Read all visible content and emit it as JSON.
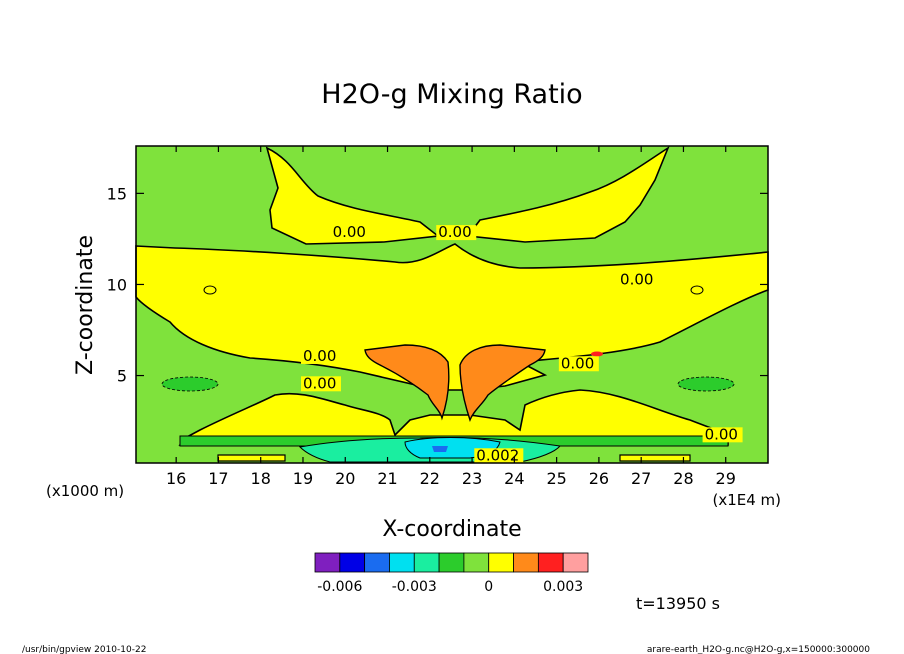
{
  "chart_data": {
    "type": "heatmap",
    "title": "H2O-g Mixing Ratio",
    "xlabel": "X-coordinate",
    "ylabel": "Z-coordinate",
    "x_unit": "(x1E4 m)",
    "y_unit": "(x1000 m)",
    "x_ticks": [
      16,
      17,
      18,
      19,
      20,
      21,
      22,
      23,
      24,
      25,
      26,
      27,
      28,
      29
    ],
    "y_ticks": [
      5,
      10,
      15
    ],
    "xlim": [
      15.05,
      30.0
    ],
    "ylim": [
      0.2,
      17.6
    ],
    "contour_labels": [
      {
        "text": "0.00",
        "x": 19.7,
        "z": 12.6
      },
      {
        "text": "0.00",
        "x": 22.2,
        "z": 12.6
      },
      {
        "text": "0.00",
        "x": 26.5,
        "z": 10.0
      },
      {
        "text": "0.00",
        "x": 19.0,
        "z": 5.8
      },
      {
        "text": "0.00",
        "x": 19.0,
        "z": 4.3
      },
      {
        "text": "0.00",
        "x": 25.1,
        "z": 5.4
      },
      {
        "text": "0.00",
        "x": 28.5,
        "z": 1.5
      },
      {
        "text": "0.002",
        "x": 23.1,
        "z": 0.35
      }
    ],
    "colorbar": {
      "colors": [
        "#7f1fbf",
        "#0000e6",
        "#1a6cf0",
        "#00e0f0",
        "#1aeea0",
        "#2ccc2c",
        "#7fe23c",
        "#ffff00",
        "#ff8a1a",
        "#ff2020",
        "#ff9f9f"
      ],
      "tick_labels": [
        "-0.006",
        "-0.003",
        "0",
        "0.003"
      ]
    },
    "time_label": "t=13950 s"
  },
  "footer": {
    "left": "/usr/bin/gpview   2010-10-22",
    "right": "arare-earth_H2O-g.nc@H2O-g,x=150000:300000"
  }
}
